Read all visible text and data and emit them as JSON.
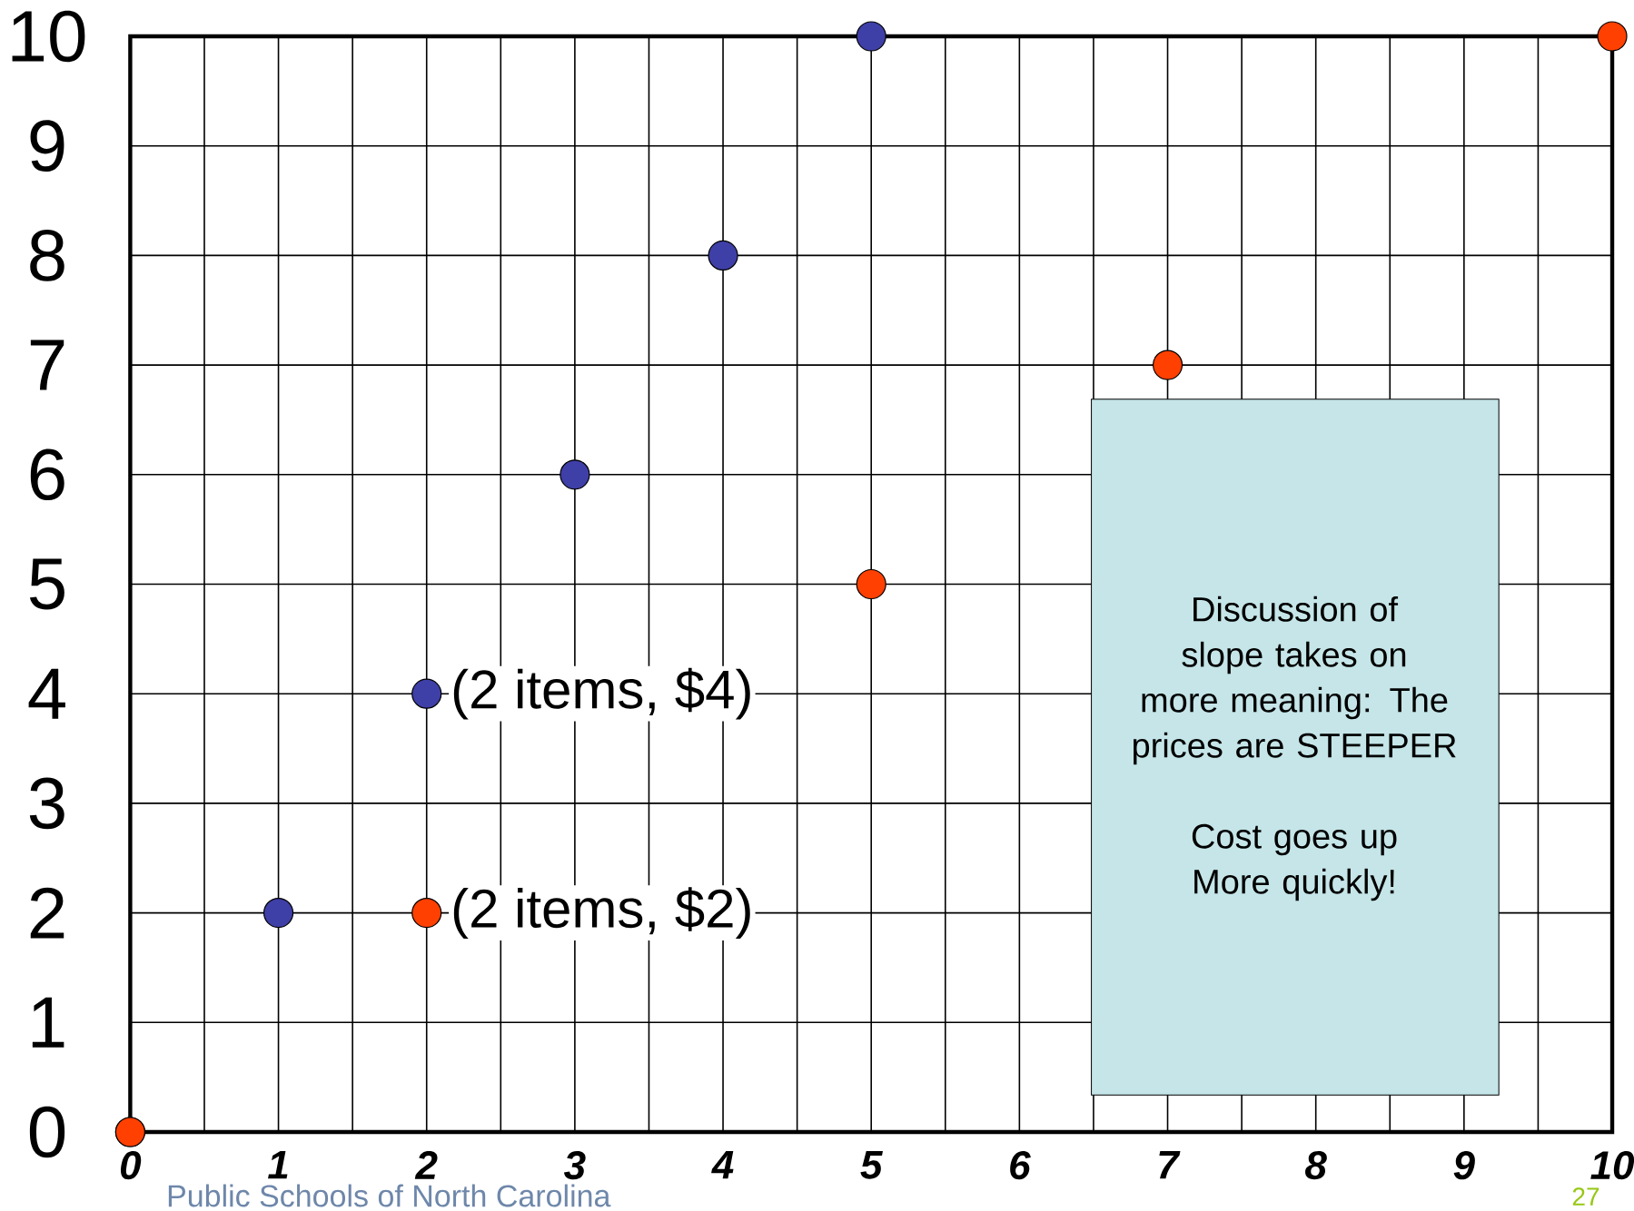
{
  "chart_data": {
    "type": "scatter",
    "series": [
      {
        "color": "#3f3fa8",
        "x": [
          0,
          1,
          2,
          3,
          4,
          5
        ],
        "values": [
          0,
          2,
          4,
          6,
          8,
          10
        ]
      },
      {
        "color": "#ff4000",
        "x": [
          0,
          2,
          5,
          7,
          10
        ],
        "values": [
          0,
          2,
          5,
          7,
          10
        ]
      }
    ],
    "xlim": [
      0,
      10
    ],
    "ylim": [
      0,
      10
    ],
    "xticks": [
      0,
      1,
      2,
      3,
      4,
      5,
      6,
      7,
      8,
      9,
      10
    ],
    "yticks": [
      0,
      1,
      2,
      3,
      4,
      5,
      6,
      7,
      8,
      9,
      10
    ],
    "grid": true,
    "marker": "circle",
    "annotations": [
      {
        "text": "(2 items, $4)",
        "x": 2,
        "y": 4
      },
      {
        "text": "(2 items, $2)",
        "x": 2,
        "y": 2
      },
      "Discussion of slope takes on more meaning: The prices are STEEPER",
      "Cost goes up More quickly!",
      "Public Schools of North Carolina",
      "27"
    ]
  }
}
